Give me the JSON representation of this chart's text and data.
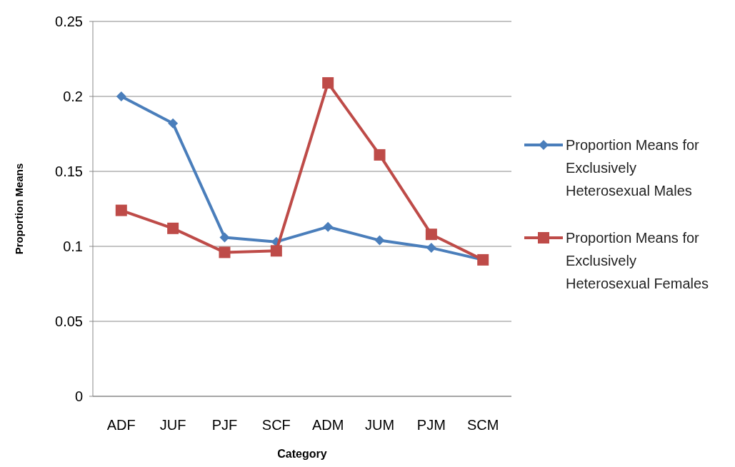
{
  "chart_data": {
    "type": "line",
    "xlabel": "Category",
    "ylabel": "Proportion Means",
    "categories": [
      "ADF",
      "JUF",
      "PJF",
      "SCF",
      "ADM",
      "JUM",
      "PJM",
      "SCM"
    ],
    "series": [
      {
        "name": "Proportion Means for Exclusively Heterosexual Males",
        "color": "#4a7ebb",
        "marker": "diamond",
        "values": [
          0.2,
          0.182,
          0.106,
          0.103,
          0.113,
          0.104,
          0.099,
          0.091
        ]
      },
      {
        "name": "Proportion Means for Exclusively Heterosexual Females",
        "color": "#be4b48",
        "marker": "square",
        "values": [
          0.124,
          0.112,
          0.096,
          0.097,
          0.209,
          0.161,
          0.108,
          0.091
        ]
      }
    ],
    "ylim": [
      0,
      0.25
    ],
    "yticks": [
      0,
      0.05,
      0.1,
      0.15,
      0.2,
      0.25
    ],
    "grid": "y",
    "legend": "right"
  }
}
